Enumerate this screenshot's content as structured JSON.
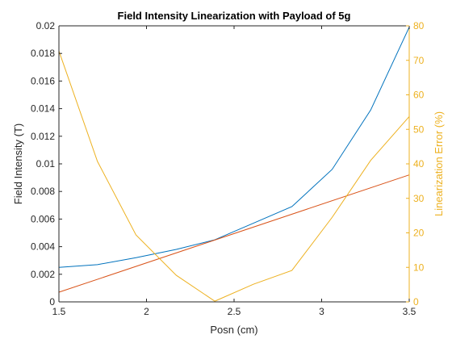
{
  "chart_data": {
    "type": "line",
    "title": "Field Intensity Linearization with Payload of 5g",
    "xlabel": "Posn (cm)",
    "ylabel_left": "Field Intensity (T)",
    "ylabel_right": "Linearization Error (%)",
    "xlim": [
      1.5,
      3.5
    ],
    "ylim_left": [
      0,
      0.02
    ],
    "ylim_right": [
      0,
      80
    ],
    "x_ticks": [
      "1.5",
      "2",
      "2.5",
      "3",
      "3.5"
    ],
    "y_ticks_left": [
      "0",
      "0.002",
      "0.004",
      "0.006",
      "0.008",
      "0.01",
      "0.012",
      "0.014",
      "0.016",
      "0.018",
      "0.02"
    ],
    "y_ticks_right": [
      "0",
      "10",
      "20",
      "30",
      "40",
      "50",
      "60",
      "70",
      "80"
    ],
    "grid": false,
    "colors": {
      "measured": "#0072BD",
      "linear": "#D95319",
      "error": "#EDB120",
      "axes": "#262626"
    },
    "series": [
      {
        "axis": "left",
        "color": "#0072BD",
        "x": [
          1.5,
          1.72,
          1.94,
          2.17,
          2.39,
          2.61,
          2.83,
          3.06,
          3.28,
          3.5
        ],
        "y": [
          0.0025,
          0.0027,
          0.0032,
          0.0038,
          0.0045,
          0.0057,
          0.0069,
          0.0096,
          0.0139,
          0.0199
        ]
      },
      {
        "axis": "left",
        "color": "#D95319",
        "x": [
          1.5,
          3.5
        ],
        "y": [
          0.0007,
          0.0092
        ]
      },
      {
        "axis": "right",
        "color": "#EDB120",
        "x": [
          1.5,
          1.72,
          1.94,
          2.17,
          2.39,
          2.61,
          2.83,
          3.06,
          3.28,
          3.5
        ],
        "y": [
          72.7,
          40.7,
          19.4,
          7.7,
          0.2,
          5.1,
          9.1,
          24.5,
          41.0,
          53.7
        ]
      }
    ]
  }
}
